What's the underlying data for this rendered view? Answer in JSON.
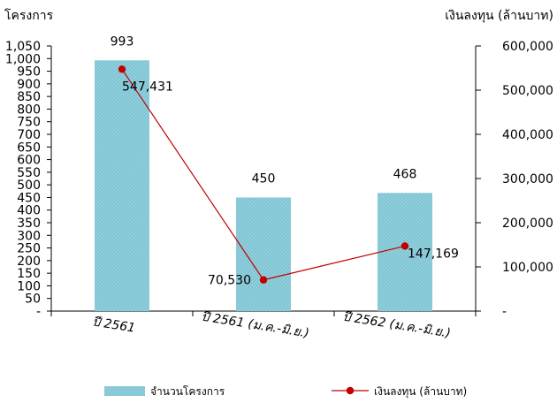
{
  "chart_data": {
    "type": "bar",
    "categories": [
      "ปี 2561",
      "ปี 2561 (ม.ค.-มิ.ย.)",
      "ปี 2562 (ม.ค.-มิ.ย.)"
    ],
    "series": [
      {
        "name": "จำนวนโครงการ",
        "type": "bar",
        "axis": "left",
        "values": [
          993,
          450,
          468
        ],
        "labels": [
          "993",
          "450",
          "468"
        ],
        "color": "#8fcfdc"
      },
      {
        "name": "เงินลงทุน (ล้านบาท)",
        "type": "line",
        "axis": "right",
        "values": [
          547431,
          70530,
          147169
        ],
        "labels": [
          "547,431",
          "70,530",
          "147,169"
        ],
        "connected": [
          false,
          true,
          true
        ],
        "color": "#c00000"
      }
    ],
    "left_axis": {
      "title": "โครงการ",
      "range": [
        0,
        1050
      ],
      "ticks": [
        "-",
        "50",
        "100",
        "150",
        "200",
        "250",
        "300",
        "350",
        "400",
        "450",
        "500",
        "550",
        "600",
        "650",
        "700",
        "750",
        "800",
        "850",
        "900",
        "950",
        "1,000",
        "1,050"
      ]
    },
    "right_axis": {
      "title": "เงินลงทุน (ล้านบาท)",
      "range": [
        0,
        600000
      ],
      "ticks": [
        "-",
        "100,000",
        "200,000",
        "300,000",
        "400,000",
        "500,000",
        "600,000"
      ]
    },
    "grid": false,
    "legend": "bottom"
  }
}
